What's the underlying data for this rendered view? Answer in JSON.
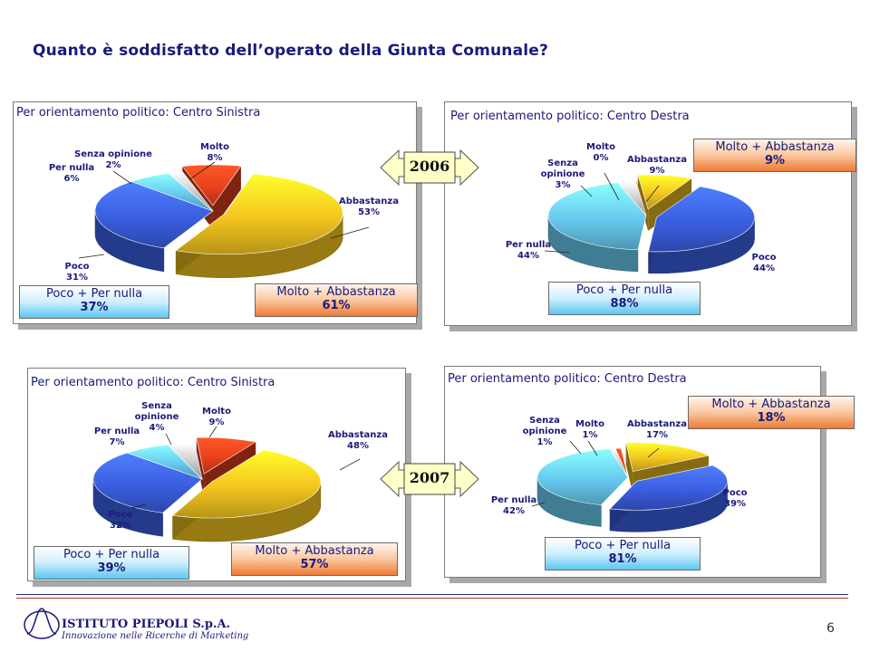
{
  "page": {
    "title": "Quanto è soddisfatto dell’operato della Giunta Comunale?",
    "page_number": "6"
  },
  "footer": {
    "company": "ISTITUTO PIEPOLI S.p.A.",
    "tagline": "Innovazione nelle Ricerche di Marketing"
  },
  "years": [
    "2006",
    "2007"
  ],
  "colors": {
    "Molto": "#e8411c",
    "Abbastanza": "#f3c51f",
    "Poco": "#3a5ee0",
    "Per nulla": "#67c9ee",
    "Senza opinione": "#c8c8c8"
  },
  "chart_data": [
    {
      "type": "pie",
      "year": "2006",
      "title": "Per orientamento politico: Centro Sinistra",
      "slices": [
        {
          "label": "Molto",
          "value": 8
        },
        {
          "label": "Abbastanza",
          "value": 53
        },
        {
          "label": "Poco",
          "value": 31
        },
        {
          "label": "Per nulla",
          "value": 6
        },
        {
          "label": "Senza opinione",
          "value": 2
        }
      ],
      "summary": [
        {
          "label": "Poco + Per nulla",
          "value": "37%"
        },
        {
          "label": "Molto + Abbastanza",
          "value": "61%"
        }
      ]
    },
    {
      "type": "pie",
      "year": "2006",
      "title": "Per orientamento politico: Centro Destra",
      "slices": [
        {
          "label": "Molto",
          "value": 0
        },
        {
          "label": "Abbastanza",
          "value": 9
        },
        {
          "label": "Poco",
          "value": 44
        },
        {
          "label": "Per nulla",
          "value": 44
        },
        {
          "label": "Senza opinione",
          "value": 3
        }
      ],
      "summary": [
        {
          "label": "Molto + Abbastanza",
          "value": "9%"
        },
        {
          "label": "Poco + Per nulla",
          "value": "88%"
        }
      ]
    },
    {
      "type": "pie",
      "year": "2007",
      "title": "Per orientamento politico: Centro Sinistra",
      "slices": [
        {
          "label": "Molto",
          "value": 9
        },
        {
          "label": "Abbastanza",
          "value": 48
        },
        {
          "label": "Poco",
          "value": 32
        },
        {
          "label": "Per nulla",
          "value": 7
        },
        {
          "label": "Senza opinione",
          "value": 4
        }
      ],
      "summary": [
        {
          "label": "Poco + Per nulla",
          "value": "39%"
        },
        {
          "label": "Molto + Abbastanza",
          "value": "57%"
        }
      ]
    },
    {
      "type": "pie",
      "year": "2007",
      "title": "Per orientamento politico: Centro Destra",
      "slices": [
        {
          "label": "Molto",
          "value": 1
        },
        {
          "label": "Abbastanza",
          "value": 17
        },
        {
          "label": "Poco",
          "value": 39
        },
        {
          "label": "Per nulla",
          "value": 42
        },
        {
          "label": "Senza opinione",
          "value": 1
        }
      ],
      "summary": [
        {
          "label": "Molto + Abbastanza",
          "value": "18%"
        },
        {
          "label": "Poco + Per nulla",
          "value": "81%"
        }
      ]
    }
  ]
}
